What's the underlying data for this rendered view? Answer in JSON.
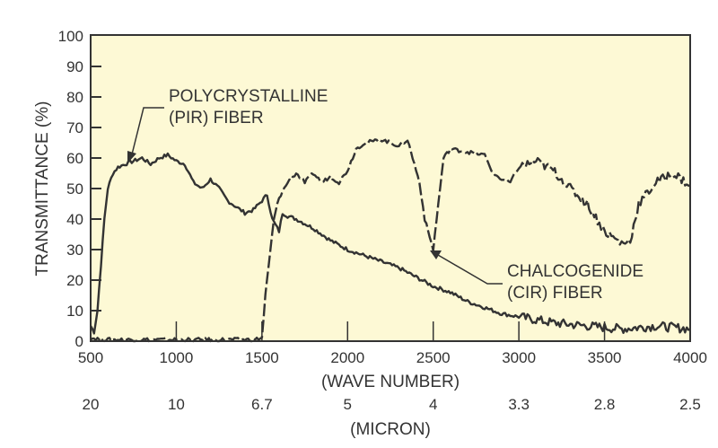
{
  "chart_data": {
    "type": "line",
    "title": "",
    "xlabel": "(WAVE NUMBER)",
    "xlabel2": "(MICRON)",
    "ylabel": "TRANSMITTANCE (%)",
    "xlim": [
      500,
      4000
    ],
    "ylim": [
      0,
      100
    ],
    "x_ticks": [
      500,
      1000,
      1500,
      2000,
      2500,
      3000,
      3500,
      4000
    ],
    "x_tick_labels": [
      "500",
      "1000",
      "1500",
      "2000",
      "2500",
      "3000",
      "3500",
      "4000"
    ],
    "micron_tick_labels": [
      "20",
      "10",
      "6.7",
      "5",
      "4",
      "3.3",
      "2.8",
      "2.5"
    ],
    "y_ticks": [
      0,
      10,
      20,
      30,
      40,
      50,
      60,
      70,
      80,
      90,
      100
    ],
    "y_tick_labels": [
      "0",
      "10",
      "20",
      "30",
      "40",
      "50",
      "60",
      "70",
      "80",
      "90",
      "100"
    ],
    "grid": false,
    "background": "#fdf9d5",
    "line_color": "#333333",
    "series": [
      {
        "name": "POLYCRYSTALLINE (PIR) FIBER",
        "style": "solid",
        "x": [
          500,
          520,
          540,
          560,
          580,
          600,
          630,
          660,
          700,
          750,
          800,
          850,
          900,
          950,
          1000,
          1050,
          1100,
          1150,
          1200,
          1250,
          1300,
          1350,
          1400,
          1450,
          1500,
          1530,
          1560,
          1600,
          1620,
          1650,
          1700,
          1800,
          1900,
          2000,
          2100,
          2200,
          2300,
          2400,
          2500,
          2600,
          2700,
          2800,
          2900,
          3000,
          3200,
          3400,
          3600,
          3800,
          4000
        ],
        "y": [
          5,
          3,
          10,
          25,
          40,
          50,
          55,
          57,
          58,
          59,
          60,
          58,
          60,
          61,
          59,
          58,
          52,
          50,
          53,
          50,
          46,
          44,
          42,
          43,
          46,
          48,
          40,
          36,
          42,
          41,
          40,
          37,
          33,
          30,
          28,
          26,
          24,
          21,
          18,
          16,
          13,
          11,
          9,
          8,
          6,
          5,
          4,
          5,
          4
        ]
      },
      {
        "name": "CHALCOGENIDE (CIR) FIBER",
        "style": "dashed",
        "x": [
          500,
          600,
          800,
          1000,
          1200,
          1450,
          1500,
          1520,
          1550,
          1570,
          1600,
          1650,
          1700,
          1750,
          1800,
          1850,
          1900,
          1950,
          2000,
          2050,
          2100,
          2200,
          2300,
          2350,
          2380,
          2420,
          2450,
          2500,
          2530,
          2560,
          2600,
          2700,
          2800,
          2850,
          2900,
          2950,
          3000,
          3100,
          3200,
          3300,
          3400,
          3500,
          3600,
          3650,
          3700,
          3800,
          3900,
          4000
        ],
        "y": [
          1,
          0.5,
          0.5,
          0.5,
          0.5,
          0.5,
          1,
          15,
          30,
          40,
          47,
          52,
          55,
          52,
          55,
          52,
          54,
          52,
          56,
          63,
          65,
          66,
          64,
          66,
          60,
          52,
          40,
          30,
          45,
          60,
          63,
          62,
          61,
          55,
          53,
          52,
          57,
          59,
          56,
          50,
          45,
          36,
          32,
          33,
          45,
          52,
          55,
          51
        ]
      }
    ],
    "annotations": [
      {
        "lines": [
          "POLYCRYSTALLINE",
          "(PIR) FIBER"
        ],
        "points_to": [
          700,
          58
        ]
      },
      {
        "lines": [
          "CHALCOGENIDE",
          "(CIR) FIBER"
        ],
        "points_to": [
          2500,
          30
        ]
      }
    ]
  }
}
